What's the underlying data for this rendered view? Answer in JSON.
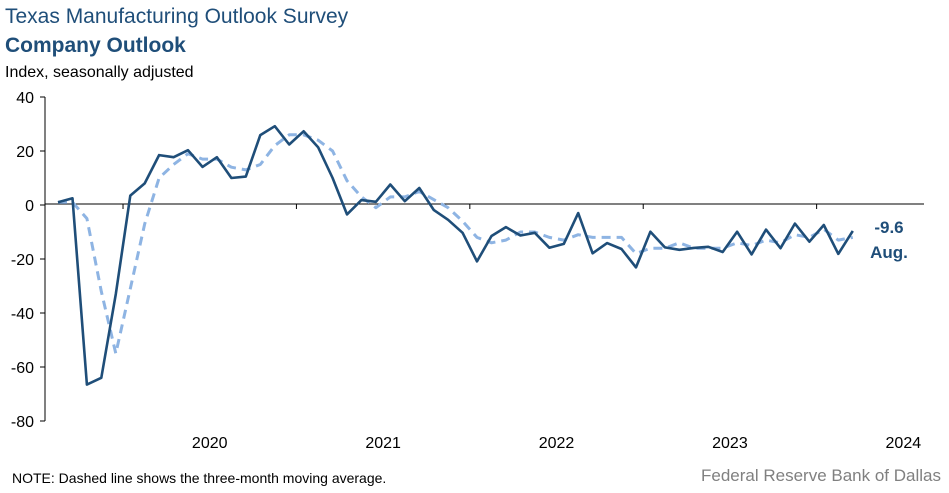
{
  "header": {
    "title": "Texas Manufacturing Outlook Survey",
    "subtitle": "Company Outlook",
    "units": "Index, seasonally adjusted"
  },
  "footer": {
    "note": "NOTE: Dashed line shows the three-month  moving average.",
    "source": "Federal Reserve Bank of Dallas"
  },
  "colors": {
    "index": "#1f4e79",
    "moving_average": "#8eb4e3",
    "axis": "#000000",
    "callout": "#1f4e79"
  },
  "chart_data": {
    "type": "line",
    "title": "Company Outlook",
    "ylabel": "Index, seasonally adjusted",
    "ylim": [
      -80,
      40
    ],
    "yticks": [
      40,
      20,
      0,
      -20,
      -40,
      -60,
      -80
    ],
    "x_start": "2019-08",
    "x_end": "2024-08",
    "xticks": [
      "2020",
      "2021",
      "2022",
      "2023",
      "2024"
    ],
    "grid": false,
    "series": [
      {
        "line_style": "solid",
        "values": [
          1,
          2.5,
          -66.5,
          -64,
          -33,
          3.5,
          8,
          18.5,
          17.7,
          20.3,
          14.1,
          17.7,
          10,
          10.5,
          25.9,
          29.2,
          22.4,
          27.3,
          21.4,
          10,
          -3.5,
          1.8,
          1.2,
          7.6,
          1.4,
          6.3,
          -1.8,
          -5.5,
          -10.3,
          -20.9,
          -11.5,
          -8.2,
          -11.3,
          -10.3,
          -15.8,
          -14.4,
          -3,
          -17.9,
          -14.1,
          -16.3,
          -23.1,
          -9.9,
          -15.7,
          -16.6,
          -15.9,
          -15.5,
          -17.4,
          -9.9,
          -18.3,
          -9.1,
          -16,
          -6.9,
          -13.6,
          -7.4,
          -18.1,
          -9.6
        ]
      },
      {
        "line_style": "dashed",
        "values": [
          1,
          1,
          -5,
          -32,
          -55,
          -31,
          -7,
          10,
          15,
          19,
          17,
          17,
          14,
          13,
          15,
          22,
          26,
          26,
          24,
          20,
          9,
          3,
          -1,
          3,
          3,
          5,
          2,
          -1,
          -6,
          -12,
          -14,
          -13,
          -10,
          -10,
          -12,
          -13,
          -11,
          -12,
          -12,
          -12,
          -18,
          -16,
          -16,
          -14,
          -16,
          -16,
          -16,
          -14,
          -15,
          -13,
          -14,
          -11,
          -12,
          -9,
          -13,
          -12
        ]
      }
    ],
    "annotation": {
      "value": "-9.6",
      "label": "Aug."
    }
  }
}
